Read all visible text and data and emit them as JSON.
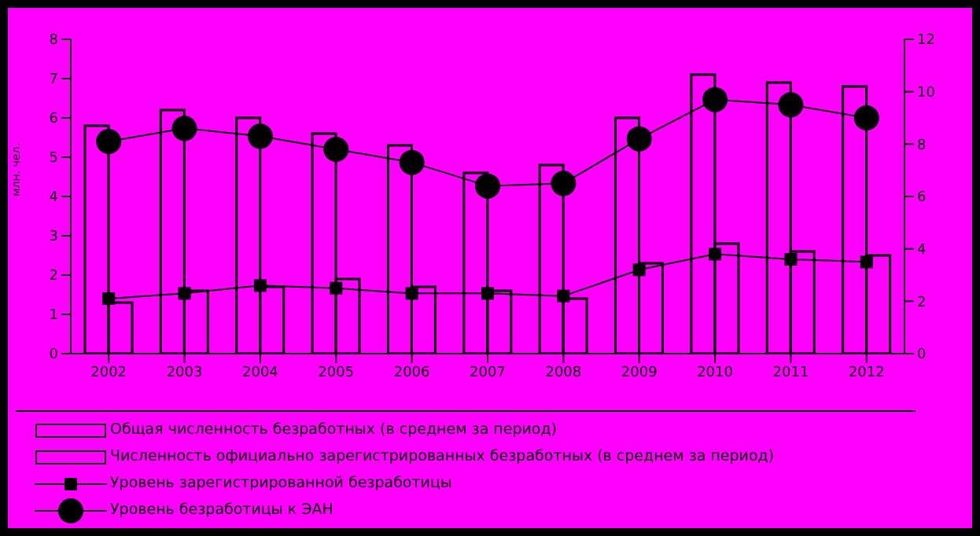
{
  "chart_data": {
    "type": "bar",
    "ylabel": "млн. чел.",
    "categories": [
      "2002",
      "2003",
      "2004",
      "2005",
      "2006",
      "2007",
      "2008",
      "2009",
      "2010",
      "2011",
      "2012"
    ],
    "series": [
      {
        "name": "Общая численность безработных (в среднем за период)",
        "color": "#000000",
        "values": [
          5.8,
          6.2,
          6.0,
          5.6,
          5.3,
          4.6,
          4.8,
          6.0,
          7.1,
          6.9,
          6.8
        ]
      },
      {
        "name": "Численность официально зарегистрированных безработных (в среднем за период)",
        "color": "#000000",
        "values": [
          1.3,
          1.6,
          1.7,
          1.9,
          1.7,
          1.6,
          1.4,
          2.3,
          2.8,
          2.6,
          2.5
        ]
      },
      {
        "name": "Уровень зарегистрированной безработицы",
        "type": "line",
        "axis": "y2",
        "marker": "square",
        "color": "#000000",
        "values": [
          2.1,
          2.3,
          2.6,
          2.5,
          2.3,
          2.3,
          2.2,
          3.2,
          3.8,
          3.6,
          3.5
        ]
      },
      {
        "name": "Уровень безработицы к ЭАН",
        "type": "line",
        "axis": "y2",
        "marker": "circle",
        "color": "#000000",
        "values": [
          8.1,
          8.6,
          8.3,
          7.8,
          7.3,
          6.4,
          6.5,
          8.2,
          9.7,
          9.5,
          9.0
        ]
      }
    ],
    "ylim": [
      0,
      8
    ],
    "yticks": [
      0,
      1,
      2,
      3,
      4,
      5,
      6,
      7,
      8
    ],
    "y2lim": [
      0,
      12
    ],
    "y2ticks": [
      0,
      2,
      4,
      6,
      8,
      10,
      12
    ],
    "legend": "bottom"
  }
}
